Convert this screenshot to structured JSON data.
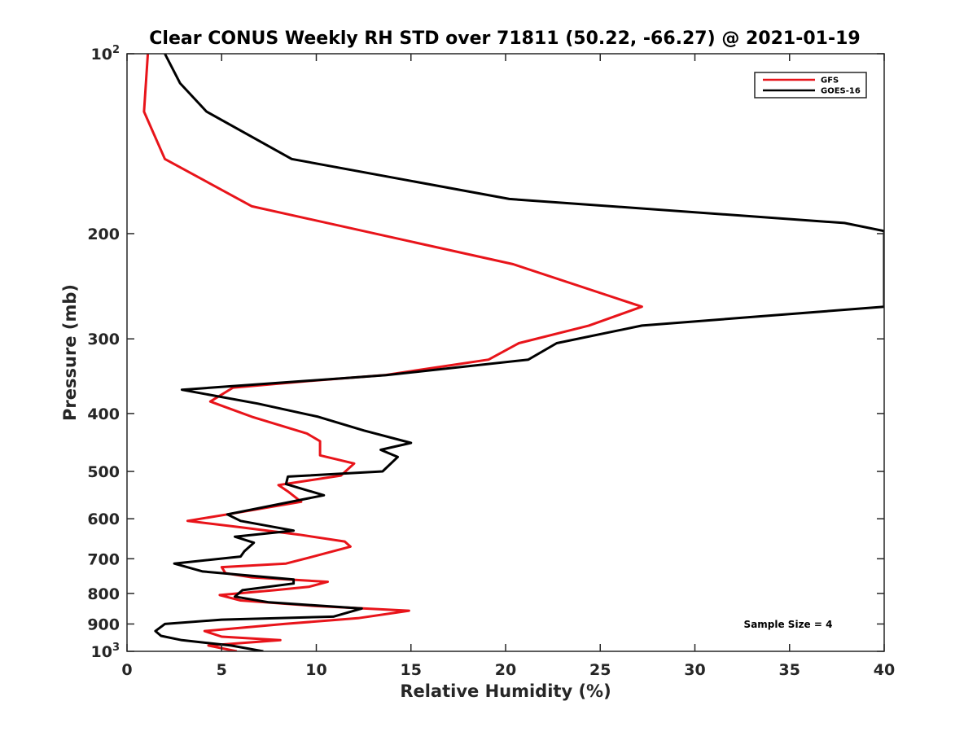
{
  "chart_data": {
    "type": "line",
    "title": "Clear CONUS Weekly RH STD over 71811 (50.22, -66.27) @ 2021-01-19",
    "xlabel": "Relative Humidity (%)",
    "ylabel": "Pressure (mb)",
    "xlim": [
      0,
      40
    ],
    "ylim": [
      100,
      1000
    ],
    "y_scale": "log",
    "y_reversed": true,
    "grid": false,
    "legend_position": "top-right",
    "x_ticks": [
      {
        "value": 0,
        "label": "0"
      },
      {
        "value": 5,
        "label": "5"
      },
      {
        "value": 10,
        "label": "10"
      },
      {
        "value": 15,
        "label": "15"
      },
      {
        "value": 20,
        "label": "20"
      },
      {
        "value": 25,
        "label": "25"
      },
      {
        "value": 30,
        "label": "30"
      },
      {
        "value": 35,
        "label": "35"
      },
      {
        "value": 40,
        "label": "40"
      }
    ],
    "y_ticks": [
      {
        "value": 100,
        "base": "10",
        "sup": "2"
      },
      {
        "value": 200,
        "base": "200",
        "sup": ""
      },
      {
        "value": 300,
        "base": "300",
        "sup": ""
      },
      {
        "value": 400,
        "base": "400",
        "sup": ""
      },
      {
        "value": 500,
        "base": "500",
        "sup": ""
      },
      {
        "value": 600,
        "base": "600",
        "sup": ""
      },
      {
        "value": 700,
        "base": "700",
        "sup": ""
      },
      {
        "value": 800,
        "base": "800",
        "sup": ""
      },
      {
        "value": 900,
        "base": "900",
        "sup": ""
      },
      {
        "value": 1000,
        "base": "10",
        "sup": "3"
      }
    ],
    "annotation": "Sample Size = 4",
    "series": [
      {
        "name": "GFS",
        "color": "#e8141a",
        "points": [
          [
            1.1,
            100
          ],
          [
            0.9,
            125
          ],
          [
            2.0,
            150
          ],
          [
            6.6,
            180
          ],
          [
            20.4,
            225
          ],
          [
            27.2,
            265
          ],
          [
            24.4,
            285
          ],
          [
            20.7,
            305
          ],
          [
            19.1,
            325
          ],
          [
            13.6,
            345
          ],
          [
            10.0,
            352
          ],
          [
            5.6,
            362
          ],
          [
            4.4,
            382
          ],
          [
            6.6,
            405
          ],
          [
            9.5,
            432
          ],
          [
            10.2,
            445
          ],
          [
            10.2,
            470
          ],
          [
            12.0,
            485
          ],
          [
            11.3,
            508
          ],
          [
            8.0,
            527
          ],
          [
            8.5,
            540
          ],
          [
            9.2,
            562
          ],
          [
            5.3,
            590
          ],
          [
            3.2,
            605
          ],
          [
            6.0,
            620
          ],
          [
            9.1,
            638
          ],
          [
            11.5,
            655
          ],
          [
            11.8,
            668
          ],
          [
            10.0,
            692
          ],
          [
            8.4,
            713
          ],
          [
            5.0,
            723
          ],
          [
            5.2,
            740
          ],
          [
            6.6,
            752
          ],
          [
            10.6,
            765
          ],
          [
            9.6,
            780
          ],
          [
            7.8,
            790
          ],
          [
            4.9,
            805
          ],
          [
            6.0,
            822
          ],
          [
            10.0,
            840
          ],
          [
            14.9,
            855
          ],
          [
            12.2,
            880
          ],
          [
            8.3,
            900
          ],
          [
            4.1,
            925
          ],
          [
            5.0,
            945
          ],
          [
            8.1,
            958
          ],
          [
            4.3,
            978
          ],
          [
            5.8,
            1000
          ]
        ]
      },
      {
        "name": "GOES-16",
        "color": "#000000",
        "points": [
          [
            2.0,
            100
          ],
          [
            2.8,
            112
          ],
          [
            4.2,
            125
          ],
          [
            8.7,
            150
          ],
          [
            20.2,
            175
          ],
          [
            37.9,
            192
          ],
          [
            40.0,
            198
          ],
          [
            40.0,
            265
          ],
          [
            27.2,
            285
          ],
          [
            22.7,
            305
          ],
          [
            21.2,
            325
          ],
          [
            13.7,
            345
          ],
          [
            2.9,
            365
          ],
          [
            6.9,
            385
          ],
          [
            10.1,
            405
          ],
          [
            12.5,
            427
          ],
          [
            15.0,
            448
          ],
          [
            13.4,
            460
          ],
          [
            14.3,
            473
          ],
          [
            13.5,
            500
          ],
          [
            8.5,
            510
          ],
          [
            8.4,
            525
          ],
          [
            10.4,
            548
          ],
          [
            5.3,
            590
          ],
          [
            6.0,
            605
          ],
          [
            8.8,
            628
          ],
          [
            5.7,
            643
          ],
          [
            6.7,
            658
          ],
          [
            6.2,
            680
          ],
          [
            6.0,
            694
          ],
          [
            2.5,
            713
          ],
          [
            4.0,
            735
          ],
          [
            8.8,
            758
          ],
          [
            8.8,
            770
          ],
          [
            6.1,
            790
          ],
          [
            5.7,
            810
          ],
          [
            7.5,
            828
          ],
          [
            12.4,
            848
          ],
          [
            10.9,
            875
          ],
          [
            5.0,
            885
          ],
          [
            2.0,
            900
          ],
          [
            1.5,
            925
          ],
          [
            1.8,
            942
          ],
          [
            2.9,
            958
          ],
          [
            5.5,
            978
          ],
          [
            7.2,
            1000
          ]
        ]
      }
    ]
  }
}
